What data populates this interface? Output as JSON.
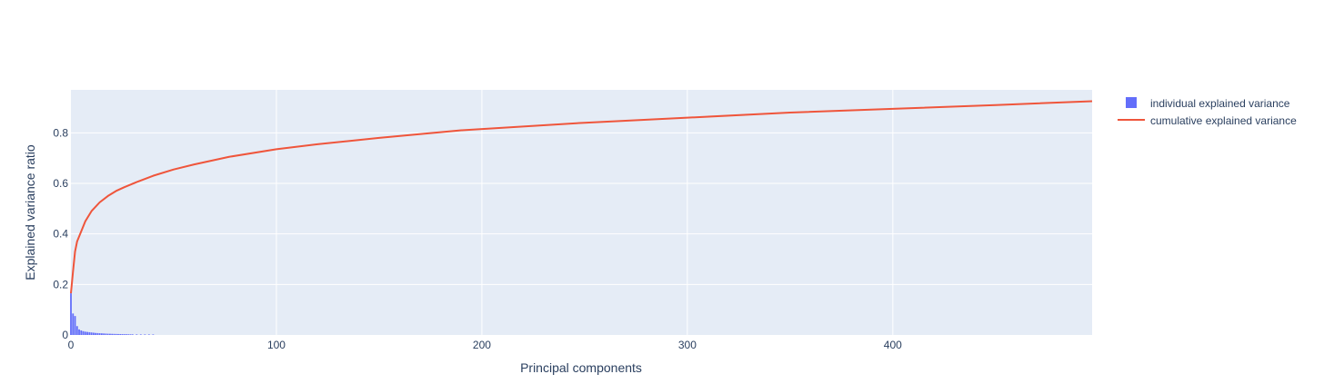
{
  "chart_data": {
    "type": "bar+line",
    "xlabel": "Principal components",
    "ylabel": "Explained variance ratio",
    "xlim": [
      0,
      497
    ],
    "ylim": [
      0,
      0.97
    ],
    "x_ticks": [
      0,
      100,
      200,
      300,
      400
    ],
    "y_ticks": [
      0,
      0.2,
      0.4,
      0.6,
      0.8
    ],
    "x_tick_labels": [
      "0",
      "100",
      "200",
      "300",
      "400"
    ],
    "y_tick_labels": [
      "0",
      "0.2",
      "0.4",
      "0.6",
      "0.8"
    ],
    "grid": true,
    "legend_position": "right",
    "series": [
      {
        "name": "individual explained variance",
        "kind": "bar",
        "color": "#636efa",
        "x": [
          0,
          1,
          2,
          3,
          4,
          5,
          6,
          7,
          8,
          9,
          10,
          11,
          12,
          13,
          14,
          15,
          16,
          17,
          18,
          19,
          20,
          21,
          22,
          23,
          24,
          25,
          26,
          27,
          28,
          29,
          30,
          32,
          34,
          36,
          38,
          40
        ],
        "values": [
          0.165,
          0.085,
          0.075,
          0.035,
          0.022,
          0.018,
          0.015,
          0.013,
          0.012,
          0.011,
          0.01,
          0.009,
          0.008,
          0.0075,
          0.007,
          0.0065,
          0.006,
          0.0055,
          0.005,
          0.0048,
          0.0045,
          0.0042,
          0.004,
          0.0038,
          0.0036,
          0.0034,
          0.0032,
          0.003,
          0.0028,
          0.0026,
          0.0025,
          0.0023,
          0.0021,
          0.002,
          0.0018,
          0.0017
        ]
      },
      {
        "name": "cumulative explained variance",
        "kind": "line",
        "color": "#ef553b",
        "x": [
          0,
          1,
          2,
          3,
          5,
          7,
          10,
          14,
          18,
          22,
          26,
          32,
          40,
          50,
          60,
          77,
          100,
          120,
          150,
          190,
          250,
          300,
          350,
          400,
          450,
          497
        ],
        "values": [
          0.165,
          0.25,
          0.33,
          0.37,
          0.41,
          0.45,
          0.49,
          0.525,
          0.55,
          0.57,
          0.585,
          0.605,
          0.63,
          0.655,
          0.675,
          0.705,
          0.735,
          0.755,
          0.78,
          0.81,
          0.84,
          0.86,
          0.88,
          0.895,
          0.91,
          0.925
        ]
      }
    ]
  },
  "colors": {
    "plot_background": "#e5ecf6",
    "grid": "#ffffff",
    "text": "#2a3f5f"
  }
}
